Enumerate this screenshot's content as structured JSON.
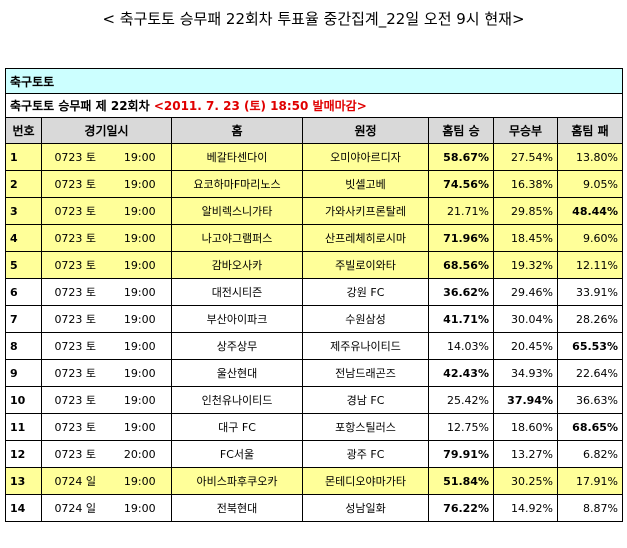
{
  "title": "< 축구토토 승무패 22회차 투표율 중간집계_22일 오전 9시 현재>",
  "table": {
    "caption": "축구토토",
    "subtitle": "축구토토 승무패 제 22회차",
    "deadline": "<2011. 7. 23 (토) 18:50 발매마감>",
    "headers": [
      "번호",
      "경기일시",
      "홈",
      "원정",
      "홈팀 승",
      "무승부",
      "홈팀 패"
    ],
    "rows": [
      {
        "cells": [
          "1",
          "0723 토",
          "19:00",
          "베갈타센다이",
          "오미야아르디자",
          "58.67%",
          "27.54%",
          "13.80%"
        ],
        "highlight": true,
        "bold": 5
      },
      {
        "cells": [
          "2",
          "0723 토",
          "19:00",
          "요코하마F마리노스",
          "빗셀고베",
          "74.56%",
          "16.38%",
          "9.05%"
        ],
        "highlight": true,
        "bold": 5
      },
      {
        "cells": [
          "3",
          "0723 토",
          "19:00",
          "알비렉스니가타",
          "가와사키프론탈레",
          "21.71%",
          "29.85%",
          "48.44%"
        ],
        "highlight": true,
        "bold": 7
      },
      {
        "cells": [
          "4",
          "0723 토",
          "19:00",
          "나고야그램퍼스",
          "산프레체히로시마",
          "71.96%",
          "18.45%",
          "9.60%"
        ],
        "highlight": true,
        "bold": 5
      },
      {
        "cells": [
          "5",
          "0723 토",
          "19:00",
          "감바오사카",
          "주빌로이와타",
          "68.56%",
          "19.32%",
          "12.11%"
        ],
        "highlight": true,
        "bold": 5
      },
      {
        "cells": [
          "6",
          "0723 토",
          "19:00",
          "대전시티즌",
          "강원 FC",
          "36.62%",
          "29.46%",
          "33.91%"
        ],
        "highlight": false,
        "bold": 5
      },
      {
        "cells": [
          "7",
          "0723 토",
          "19:00",
          "부산아이파크",
          "수원삼성",
          "41.71%",
          "30.04%",
          "28.26%"
        ],
        "highlight": false,
        "bold": 5
      },
      {
        "cells": [
          "8",
          "0723 토",
          "19:00",
          "상주상무",
          "제주유나이티드",
          "14.03%",
          "20.45%",
          "65.53%"
        ],
        "highlight": false,
        "bold": 7
      },
      {
        "cells": [
          "9",
          "0723 토",
          "19:00",
          "울산현대",
          "전남드래곤즈",
          "42.43%",
          "34.93%",
          "22.64%"
        ],
        "highlight": false,
        "bold": 5
      },
      {
        "cells": [
          "10",
          "0723 토",
          "19:00",
          "인천유나이티드",
          "경남 FC",
          "25.42%",
          "37.94%",
          "36.63%"
        ],
        "highlight": false,
        "bold": 6
      },
      {
        "cells": [
          "11",
          "0723 토",
          "19:00",
          "대구 FC",
          "포항스틸러스",
          "12.75%",
          "18.60%",
          "68.65%"
        ],
        "highlight": false,
        "bold": 7
      },
      {
        "cells": [
          "12",
          "0723 토",
          "20:00",
          "FC서울",
          "광주 FC",
          "79.91%",
          "13.27%",
          "6.82%"
        ],
        "highlight": false,
        "bold": 5
      },
      {
        "cells": [
          "13",
          "0724 일",
          "19:00",
          "아비스파후쿠오카",
          "몬테디오야마가타",
          "51.84%",
          "30.25%",
          "17.91%"
        ],
        "highlight": true,
        "bold": 5
      },
      {
        "cells": [
          "14",
          "0724 일",
          "19:00",
          "전북현대",
          "성남일화",
          "76.22%",
          "14.92%",
          "8.87%"
        ],
        "highlight": false,
        "bold": 5
      }
    ]
  }
}
